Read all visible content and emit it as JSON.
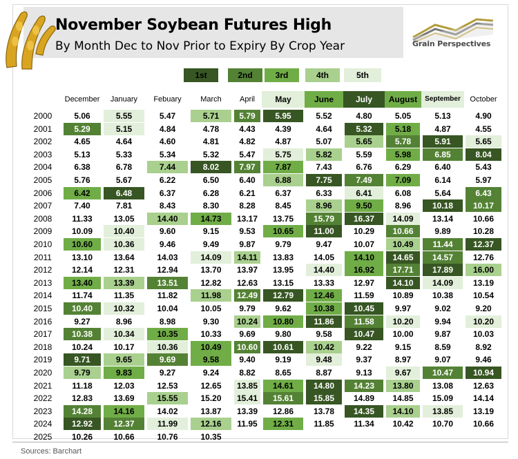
{
  "header": {
    "title": "November Soybean Futures High",
    "subtitle": "By Month Dec to Nov Prior to Expiry By Crop Year",
    "brand": "Grain Perspectives"
  },
  "source": "Sources: Barchart",
  "colors": {
    "rank1": "#375623",
    "rank2": "#548235",
    "rank3": "#70ad47",
    "rank4": "#a9d08e",
    "rank5": "#e2efda",
    "highlight_header": "#d9ead3"
  },
  "chart_data": {
    "type": "table",
    "legend": [
      "1st",
      "2nd",
      "3rd",
      "4th",
      "5th"
    ],
    "months": [
      "December",
      "January",
      "Febuary",
      "March",
      "April",
      "May",
      "June",
      "July",
      "August",
      "September",
      "October"
    ],
    "years": [
      "2000",
      "2001",
      "2002",
      "2003",
      "2004",
      "2005",
      "2006",
      "2007",
      "2008",
      "2009",
      "2010",
      "2011",
      "2012",
      "2013",
      "2014",
      "2015",
      "2016",
      "2017",
      "2018",
      "2019",
      "2020",
      "2021",
      "2022",
      "2023",
      "2024",
      "2025"
    ],
    "values": [
      [
        "5.06",
        "5.55",
        "5.47",
        "5.71",
        "5.79",
        "5.95",
        "5.52",
        "4.80",
        "5.05",
        "5.13",
        "4.90"
      ],
      [
        "5.29",
        "5.15",
        "4.84",
        "4.78",
        "4.43",
        "4.39",
        "4.64",
        "5.32",
        "5.18",
        "4.87",
        "4.55"
      ],
      [
        "4.65",
        "4.64",
        "4.60",
        "4.81",
        "4.82",
        "4.87",
        "5.07",
        "5.65",
        "5.78",
        "5.91",
        "5.65"
      ],
      [
        "5.13",
        "5.33",
        "5.34",
        "5.32",
        "5.47",
        "5.75",
        "5.82",
        "5.59",
        "5.98",
        "6.85",
        "8.04"
      ],
      [
        "6.38",
        "6.78",
        "7.44",
        "8.02",
        "7.97",
        "7.87",
        "7.43",
        "6.76",
        "6.29",
        "6.40",
        "5.43"
      ],
      [
        "5.76",
        "5.67",
        "6.22",
        "6.50",
        "6.40",
        "6.88",
        "7.75",
        "7.49",
        "7.09",
        "6.14",
        "5.97"
      ],
      [
        "6.42",
        "6.48",
        "6.37",
        "6.28",
        "6.21",
        "6.37",
        "6.33",
        "6.41",
        "6.08",
        "5.64",
        "6.43"
      ],
      [
        "7.40",
        "7.81",
        "8.43",
        "8.30",
        "8.28",
        "8.45",
        "8.96",
        "9.50",
        "8.96",
        "10.18",
        "10.17"
      ],
      [
        "11.33",
        "13.05",
        "14.40",
        "14.73",
        "13.17",
        "13.75",
        "15.79",
        "16.37",
        "14.09",
        "13.14",
        "10.66"
      ],
      [
        "10.09",
        "10.40",
        "9.60",
        "9.15",
        "9.53",
        "10.65",
        "11.00",
        "10.29",
        "10.66",
        "9.89",
        "10.28"
      ],
      [
        "10.60",
        "10.36",
        "9.46",
        "9.49",
        "9.87",
        "9.79",
        "9.47",
        "10.07",
        "10.49",
        "11.44",
        "12.37"
      ],
      [
        "13.10",
        "13.64",
        "14.03",
        "14.09",
        "14.11",
        "13.83",
        "14.05",
        "14.10",
        "14.65",
        "14.57",
        "12.76"
      ],
      [
        "12.14",
        "12.31",
        "12.94",
        "13.70",
        "13.97",
        "13.95",
        "14.40",
        "16.92",
        "17.71",
        "17.89",
        "16.00"
      ],
      [
        "13.40",
        "13.39",
        "13.51",
        "12.82",
        "12.63",
        "13.15",
        "13.33",
        "12.97",
        "14.10",
        "14.09",
        "13.19"
      ],
      [
        "11.74",
        "11.35",
        "11.82",
        "11.98",
        "12.49",
        "12.79",
        "12.46",
        "11.59",
        "10.89",
        "10.38",
        "10.54"
      ],
      [
        "10.40",
        "10.32",
        "10.04",
        "10.05",
        "9.79",
        "9.62",
        "10.38",
        "10.45",
        "9.97",
        "9.02",
        "9.20"
      ],
      [
        "9.27",
        "8.96",
        "8.98",
        "9.30",
        "10.24",
        "10.80",
        "11.86",
        "11.58",
        "10.20",
        "9.94",
        "10.20"
      ],
      [
        "10.38",
        "10.34",
        "10.35",
        "10.33",
        "9.69",
        "9.80",
        "9.58",
        "10.47",
        "10.00",
        "9.87",
        "10.03"
      ],
      [
        "10.24",
        "10.17",
        "10.36",
        "10.49",
        "10.60",
        "10.61",
        "10.42",
        "9.22",
        "9.15",
        "8.59",
        "8.92"
      ],
      [
        "9.71",
        "9.65",
        "9.69",
        "9.58",
        "9.40",
        "9.19",
        "9.48",
        "9.37",
        "8.97",
        "9.07",
        "9.46"
      ],
      [
        "9.79",
        "9.83",
        "9.27",
        "9.24",
        "8.82",
        "8.65",
        "8.87",
        "9.13",
        "9.67",
        "10.47",
        "10.94"
      ],
      [
        "11.18",
        "12.03",
        "12.53",
        "12.65",
        "13.85",
        "14.61",
        "14.80",
        "14.23",
        "13.80",
        "13.08",
        "12.63"
      ],
      [
        "12.83",
        "13.69",
        "15.55",
        "15.20",
        "15.41",
        "15.61",
        "15.85",
        "14.89",
        "14.85",
        "15.09",
        "14.14"
      ],
      [
        "14.28",
        "14.16",
        "14.02",
        "13.87",
        "13.39",
        "12.86",
        "13.78",
        "14.35",
        "14.10",
        "13.85",
        "13.19"
      ],
      [
        "12.92",
        "12.37",
        "11.99",
        "12.16",
        "11.95",
        "12.31",
        "11.85",
        "11.34",
        "10.42",
        "10.70",
        "10.66"
      ],
      [
        "10.26",
        "10.66",
        "10.76",
        "10.35",
        "",
        "",
        "",
        "",
        "",
        "",
        ""
      ]
    ],
    "ranks": [
      [
        0,
        5,
        0,
        4,
        2,
        1,
        0,
        0,
        0,
        0,
        0
      ],
      [
        2,
        5,
        0,
        0,
        0,
        0,
        0,
        1,
        3,
        0,
        0
      ],
      [
        0,
        0,
        0,
        0,
        0,
        0,
        0,
        4,
        2,
        1,
        5
      ],
      [
        0,
        0,
        0,
        0,
        0,
        5,
        4,
        0,
        3,
        2,
        1
      ],
      [
        0,
        0,
        4,
        1,
        2,
        3,
        0,
        0,
        0,
        0,
        0
      ],
      [
        0,
        0,
        0,
        0,
        0,
        4,
        1,
        2,
        3,
        0,
        0
      ],
      [
        3,
        1,
        0,
        0,
        0,
        0,
        0,
        5,
        0,
        0,
        2
      ],
      [
        0,
        0,
        0,
        0,
        0,
        0,
        4,
        3,
        0,
        1,
        2
      ],
      [
        0,
        0,
        4,
        3,
        0,
        0,
        2,
        1,
        5,
        0,
        0
      ],
      [
        0,
        5,
        0,
        0,
        0,
        3,
        1,
        0,
        2,
        0,
        0
      ],
      [
        3,
        5,
        0,
        0,
        0,
        0,
        0,
        0,
        4,
        2,
        1
      ],
      [
        0,
        0,
        0,
        5,
        4,
        0,
        0,
        3,
        1,
        2,
        0
      ],
      [
        0,
        0,
        0,
        0,
        0,
        0,
        5,
        3,
        2,
        1,
        4
      ],
      [
        3,
        4,
        2,
        0,
        0,
        0,
        0,
        0,
        1,
        5,
        0
      ],
      [
        0,
        0,
        0,
        4,
        2,
        1,
        3,
        0,
        0,
        0,
        0
      ],
      [
        2,
        5,
        0,
        0,
        0,
        0,
        3,
        1,
        0,
        0,
        0
      ],
      [
        0,
        0,
        0,
        0,
        4,
        3,
        1,
        2,
        5,
        0,
        5
      ],
      [
        2,
        5,
        3,
        0,
        0,
        0,
        0,
        1,
        0,
        0,
        0
      ],
      [
        0,
        0,
        5,
        3,
        2,
        1,
        4,
        0,
        0,
        0,
        0
      ],
      [
        1,
        4,
        2,
        3,
        0,
        0,
        5,
        0,
        0,
        0,
        0
      ],
      [
        4,
        3,
        0,
        0,
        0,
        0,
        0,
        0,
        5,
        2,
        1
      ],
      [
        0,
        0,
        0,
        0,
        5,
        3,
        1,
        2,
        4,
        0,
        0
      ],
      [
        0,
        0,
        4,
        0,
        5,
        2,
        1,
        0,
        0,
        0,
        0
      ],
      [
        2,
        3,
        0,
        0,
        0,
        0,
        0,
        1,
        4,
        5,
        0
      ],
      [
        1,
        2,
        5,
        4,
        0,
        3,
        0,
        0,
        0,
        0,
        0
      ],
      [
        0,
        0,
        0,
        0,
        0,
        0,
        0,
        0,
        0,
        0,
        0
      ]
    ],
    "highlighted_months": [
      5,
      6,
      7,
      8,
      9
    ]
  }
}
